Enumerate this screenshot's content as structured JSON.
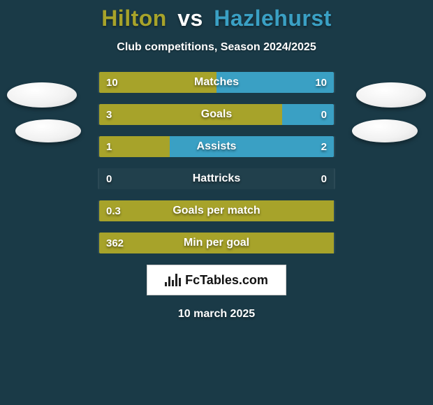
{
  "background_color": "#1a3a47",
  "title": {
    "player1": "Hilton",
    "vs": "vs",
    "player2": "Hazlehurst",
    "player1_color": "#a7a32a",
    "vs_color": "#ffffff",
    "player2_color": "#3aa0c4",
    "fontsize": 32
  },
  "subtitle": {
    "text": "Club competitions, Season 2024/2025",
    "color": "#ffffff",
    "fontsize": 16
  },
  "bar_colors": {
    "left": "#a7a32a",
    "right": "#3aa0c4",
    "track": "rgba(255,255,255,0.03)"
  },
  "stats": [
    {
      "label": "Matches",
      "left_val": "10",
      "right_val": "10",
      "left_pct": 50,
      "right_pct": 50
    },
    {
      "label": "Goals",
      "left_val": "3",
      "right_val": "0",
      "left_pct": 78,
      "right_pct": 22
    },
    {
      "label": "Assists",
      "left_val": "1",
      "right_val": "2",
      "left_pct": 30,
      "right_pct": 70
    },
    {
      "label": "Hattricks",
      "left_val": "0",
      "right_val": "0",
      "left_pct": 0,
      "right_pct": 0
    },
    {
      "label": "Goals per match",
      "left_val": "0.3",
      "right_val": "",
      "left_pct": 100,
      "right_pct": 0
    },
    {
      "label": "Min per goal",
      "left_val": "362",
      "right_val": "",
      "left_pct": 100,
      "right_pct": 0
    }
  ],
  "logo": {
    "text": "FcTables.com",
    "background": "#ffffff",
    "text_color": "#111111"
  },
  "date": {
    "text": "10 march 2025",
    "color": "#ffffff"
  },
  "avatars": {
    "fill": "#ffffff"
  }
}
